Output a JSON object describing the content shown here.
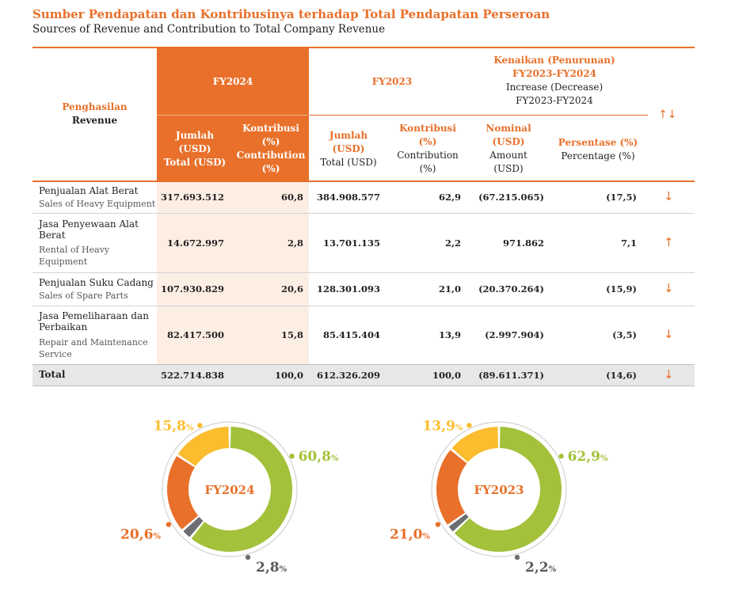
{
  "title": "Sumber Pendapatan dan Kontribusinya terhadap Total Pendapatan Perseroan",
  "subtitle": "Sources of Revenue and Contribution to Total Company Revenue",
  "colors": {
    "accent": "#e8702a",
    "green": "#a3c13a",
    "yellow": "#fbbd2e",
    "gray": "#6d6e71",
    "tint": "#fdeee4",
    "total_bg": "#e6e7e8"
  },
  "header": {
    "revenue_id": "Penghasilan",
    "revenue_en": "Revenue",
    "fy2024": "FY2024",
    "fy2023": "FY2023",
    "change_id_1": "Kenaikan (Penurunan)",
    "change_id_2": "FY2023-FY2024",
    "change_en_1": "Increase (Decrease)",
    "change_en_2": "FY2023-FY2024",
    "sort_icon": "up-down-arrows-icon",
    "jumlah": [
      "Jumlah",
      "(USD)"
    ],
    "total_usd": "Total (USD)",
    "kontribusi": [
      "Kontribusi",
      "(%)"
    ],
    "contribution": [
      "Contribution",
      "(%)"
    ],
    "nominal": [
      "Nominal",
      "(USD)"
    ],
    "amount": [
      "Amount",
      "(USD)"
    ],
    "persentase": "Persentase (%)",
    "percentage": "Percentage (%)"
  },
  "rows": [
    {
      "name_id": "Penjualan Alat Berat",
      "name_en": "Sales of Heavy Equipment",
      "fy2024_total": "317.693.512",
      "fy2024_contrib": "60,8",
      "fy2023_total": "384.908.577",
      "fy2023_contrib": "62,9",
      "nominal": "(67.215.065)",
      "percentage": "(17,5)",
      "trend": "↓"
    },
    {
      "name_id": "Jasa Penyewaan Alat Berat",
      "name_en": "Rental of Heavy Equipment",
      "fy2024_total": "14.672.997",
      "fy2024_contrib": "2,8",
      "fy2023_total": "13.701.135",
      "fy2023_contrib": "2,2",
      "nominal": "971.862",
      "percentage": "7,1",
      "trend": "↑"
    },
    {
      "name_id": "Penjualan Suku Cadang",
      "name_en": "Sales of Spare Parts",
      "fy2024_total": "107.930.829",
      "fy2024_contrib": "20,6",
      "fy2023_total": "128.301.093",
      "fy2023_contrib": "21,0",
      "nominal": "(20.370.264)",
      "percentage": "(15,9)",
      "trend": "↓"
    },
    {
      "name_id": "Jasa Pemeliharaan dan Perbaikan",
      "name_en": "Repair and Maintenance Service",
      "fy2024_total": "82.417.500",
      "fy2024_contrib": "15,8",
      "fy2023_total": "85.415.404",
      "fy2023_contrib": "13,9",
      "nominal": "(2.997.904)",
      "percentage": "(3,5)",
      "trend": "↓"
    }
  ],
  "total": {
    "label": "Total",
    "fy2024_total": "522.714.838",
    "fy2024_contrib": "100,0",
    "fy2023_total": "612.326.209",
    "fy2023_contrib": "100,0",
    "nominal": "(89.611.371)",
    "percentage": "(14,6)",
    "trend": "↓"
  },
  "chart_data": [
    {
      "type": "pie",
      "title": "FY2024",
      "labels": [
        "Penjualan Alat Berat",
        "Jasa Penyewaan Alat Berat",
        "Penjualan Suku Cadang",
        "Jasa Pemeliharaan dan Perbaikan"
      ],
      "values": [
        60.8,
        2.8,
        20.6,
        15.8
      ],
      "value_labels": [
        "60,8",
        "2,8",
        "20,6",
        "15,8"
      ],
      "unit": "%",
      "colors": [
        "#a3c13a",
        "#6d6e71",
        "#e8702a",
        "#fbbd2e"
      ]
    },
    {
      "type": "pie",
      "title": "FY2023",
      "labels": [
        "Penjualan Alat Berat",
        "Jasa Penyewaan Alat Berat",
        "Penjualan Suku Cadang",
        "Jasa Pemeliharaan dan Perbaikan"
      ],
      "values": [
        62.9,
        2.2,
        21.0,
        13.9
      ],
      "value_labels": [
        "62,9",
        "2,2",
        "21,0",
        "13,9"
      ],
      "unit": "%",
      "colors": [
        "#a3c13a",
        "#6d6e71",
        "#e8702a",
        "#fbbd2e"
      ]
    }
  ]
}
